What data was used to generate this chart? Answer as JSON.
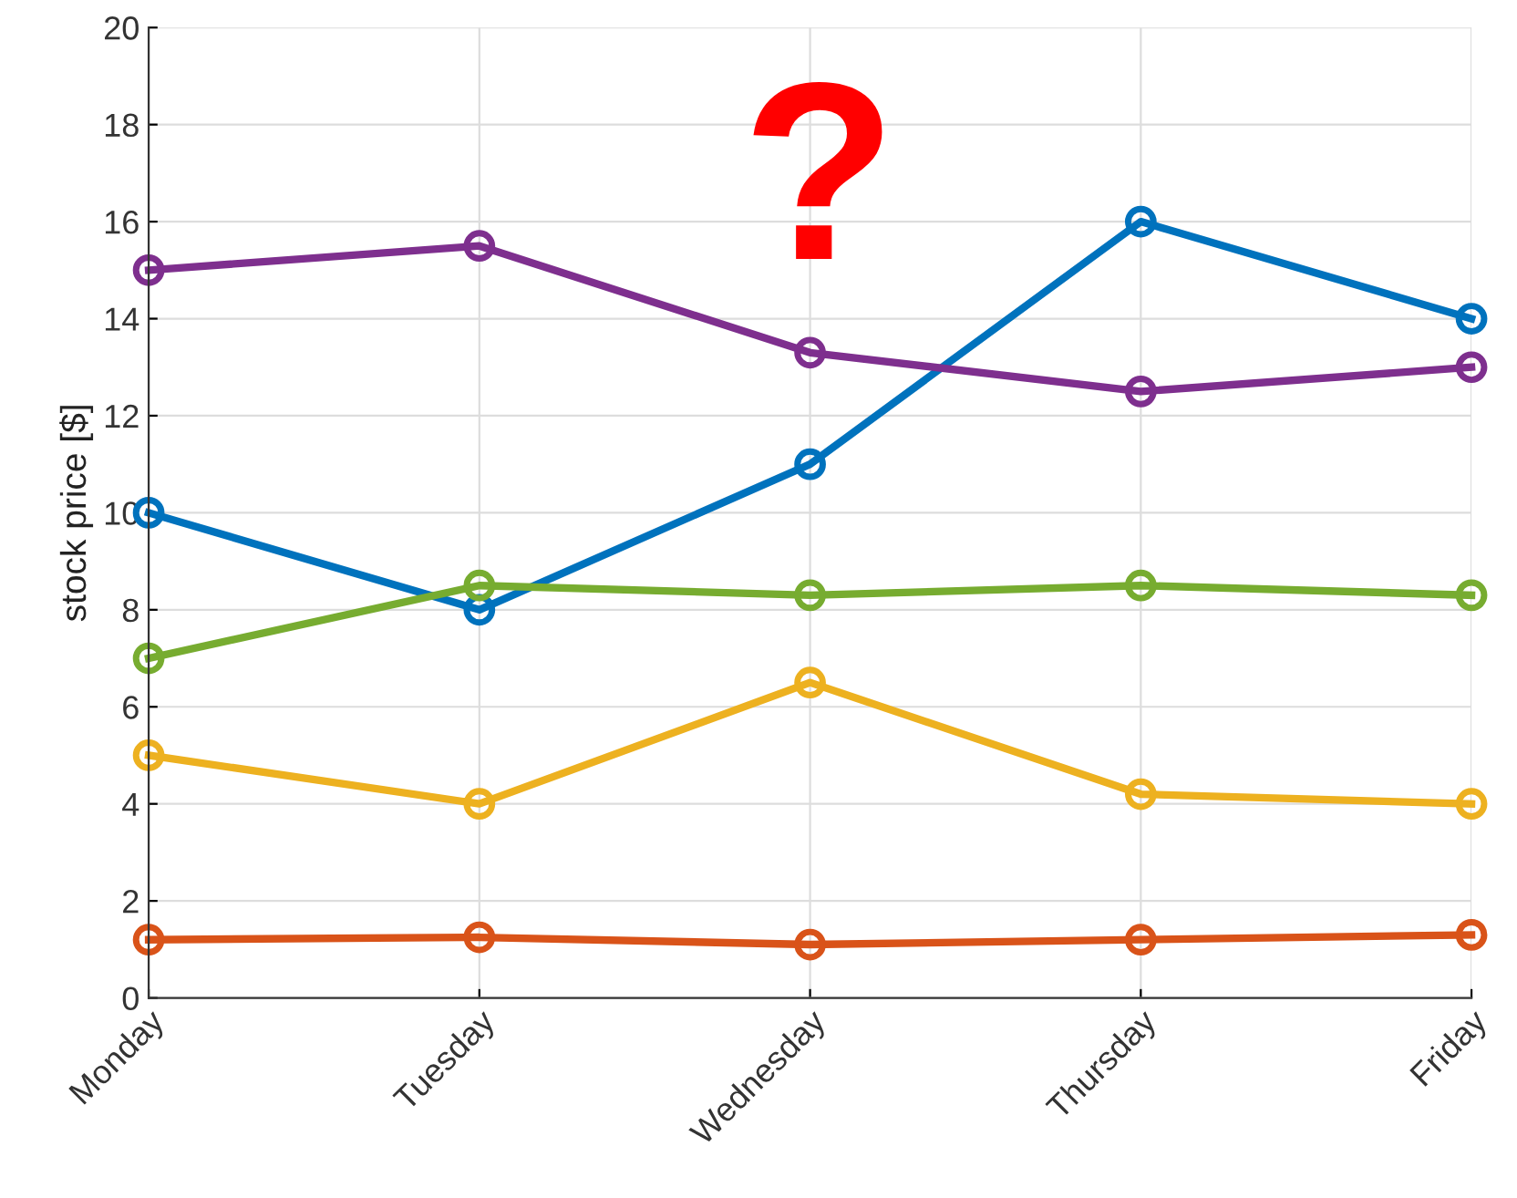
{
  "chart_data": {
    "type": "line",
    "ylabel": "stock price [$]",
    "annotations": [
      "?"
    ],
    "categories": [
      "Monday",
      "Tuesday",
      "Wednesday",
      "Thursday",
      "Friday"
    ],
    "ylim": [
      0,
      20
    ],
    "yticks": [
      0,
      2,
      4,
      6,
      8,
      10,
      12,
      14,
      16,
      18,
      20
    ],
    "grid": true,
    "marker": "circle",
    "line_style": "solid",
    "series": [
      {
        "color": "#0072bd",
        "values": [
          10,
          8,
          11,
          16,
          14
        ]
      },
      {
        "color": "#d95319",
        "values": [
          1.2,
          1.25,
          1.1,
          1.2,
          1.3
        ]
      },
      {
        "color": "#edb120",
        "values": [
          5,
          4,
          6.5,
          4.2,
          4
        ]
      },
      {
        "color": "#7e2f8e",
        "values": [
          15,
          15.5,
          13.3,
          12.5,
          13
        ]
      },
      {
        "color": "#77ac30",
        "values": [
          7,
          8.5,
          8.3,
          8.5,
          8.3
        ]
      }
    ]
  }
}
